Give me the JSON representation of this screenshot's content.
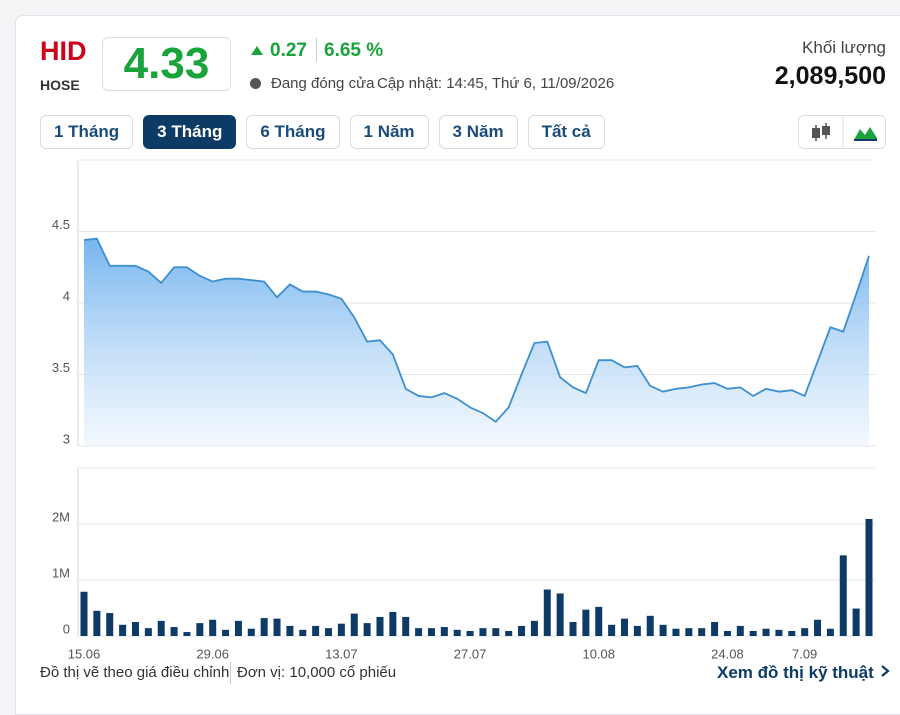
{
  "header": {
    "ticker": "HID",
    "exchange": "HOSE",
    "price": "4.33",
    "change": "0.27",
    "change_percent": "6.65 %",
    "status": "Đang đóng cửa",
    "updated": "Cập nhật: 14:45, Thứ 6, 11/09/2026",
    "volume_label": "Khối lượng",
    "volume": "2,089,500"
  },
  "tabs": {
    "items": [
      "1 Tháng",
      "3 Tháng",
      "6 Tháng",
      "1 Năm",
      "3 Năm",
      "Tất cả"
    ],
    "active": 1
  },
  "chart_data": [
    {
      "type": "area",
      "color": "#3d8fcf",
      "grid": true,
      "ylim": [
        3,
        5
      ],
      "yticks": [
        3,
        3.5,
        4,
        4.5
      ],
      "values": [
        4.44,
        4.45,
        4.26,
        4.26,
        4.26,
        4.22,
        4.14,
        4.25,
        4.25,
        4.19,
        4.15,
        4.17,
        4.17,
        4.16,
        4.15,
        4.04,
        4.13,
        4.08,
        4.08,
        4.06,
        4.03,
        3.9,
        3.73,
        3.74,
        3.64,
        3.4,
        3.35,
        3.34,
        3.37,
        3.33,
        3.27,
        3.23,
        3.17,
        3.27,
        3.5,
        3.72,
        3.73,
        3.48,
        3.41,
        3.37,
        3.6,
        3.6,
        3.55,
        3.56,
        3.42,
        3.38,
        3.4,
        3.41,
        3.43,
        3.44,
        3.4,
        3.41,
        3.35,
        3.4,
        3.38,
        3.39,
        3.35,
        3.59,
        3.83,
        3.8,
        4.06,
        4.33
      ]
    },
    {
      "type": "bar",
      "color": "#0d3b66",
      "grid": true,
      "ylim": [
        0,
        3000000
      ],
      "yticks": [
        0,
        {
          "value": 1000000,
          "label": "1M"
        },
        {
          "value": 2000000,
          "label": "2M"
        }
      ],
      "categories": [
        "15.06",
        null,
        null,
        null,
        null,
        null,
        null,
        null,
        null,
        null,
        "29.06",
        null,
        null,
        null,
        null,
        null,
        null,
        null,
        null,
        null,
        "13.07",
        null,
        null,
        null,
        null,
        null,
        null,
        null,
        null,
        null,
        "27.07",
        null,
        null,
        null,
        null,
        null,
        null,
        null,
        null,
        null,
        "10.08",
        null,
        null,
        null,
        null,
        null,
        null,
        null,
        null,
        null,
        "24.08",
        null,
        null,
        null,
        null,
        null,
        "7.09",
        null,
        null,
        null,
        null,
        null
      ],
      "values": [
        790000,
        450000,
        410000,
        200000,
        250000,
        140000,
        270000,
        160000,
        70000,
        230000,
        290000,
        110000,
        270000,
        130000,
        320000,
        310000,
        180000,
        110000,
        180000,
        140000,
        220000,
        400000,
        230000,
        340000,
        430000,
        340000,
        140000,
        140000,
        160000,
        110000,
        90000,
        140000,
        140000,
        90000,
        180000,
        270000,
        830000,
        760000,
        250000,
        470000,
        520000,
        200000,
        310000,
        180000,
        360000,
        200000,
        130000,
        140000,
        140000,
        250000,
        90000,
        180000,
        90000,
        130000,
        110000,
        90000,
        140000,
        290000,
        130000,
        1440000,
        490000,
        2089500
      ]
    }
  ],
  "footer": {
    "note": "Đồ thị vẽ theo giá điều chỉnh",
    "unit": "Đơn vị: 10,000 cổ phiếu",
    "link": "Xem đồ thị kỹ thuật"
  }
}
